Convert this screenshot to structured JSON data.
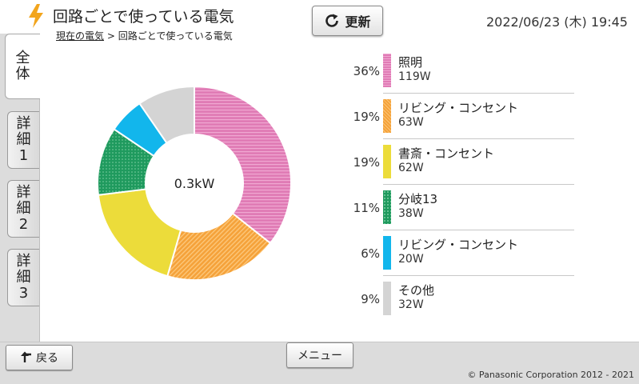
{
  "header": {
    "title": "回路ごとで使っている電気",
    "breadcrumb_link": "現在の電気",
    "breadcrumb_separator": ">",
    "breadcrumb_current": "回路ごとで使っている電気",
    "refresh_label": "更新",
    "datetime": "2022/06/23 (木) 19:45",
    "bolt_color": "#f2a51d"
  },
  "sidebar": {
    "tabs": [
      {
        "line1": "全",
        "line2": "体",
        "line3": ""
      },
      {
        "line1": "詳",
        "line2": "細",
        "line3": "1"
      },
      {
        "line1": "詳",
        "line2": "細",
        "line3": "2"
      },
      {
        "line1": "詳",
        "line2": "細",
        "line3": "3"
      }
    ],
    "active_tab": 0
  },
  "chart_data": {
    "type": "pie",
    "donut": true,
    "center_label": "0.3kW",
    "slices": [
      {
        "name": "照明",
        "percent": 36,
        "watts": "119W",
        "value": 119,
        "color": "#e07bb5",
        "pattern": "h-stripes"
      },
      {
        "name": "リビング・コンセント",
        "percent": 19,
        "watts": "63W",
        "value": 63,
        "color": "#f5a23a",
        "pattern": "diag-stripes"
      },
      {
        "name": "書斎・コンセント",
        "percent": 19,
        "watts": "62W",
        "value": 62,
        "color": "#ecdc3a",
        "pattern": "solid"
      },
      {
        "name": "分岐13",
        "percent": 11,
        "watts": "38W",
        "value": 38,
        "color": "#1f9a5e",
        "pattern": "dots"
      },
      {
        "name": "リビング・コンセント",
        "percent": 6,
        "watts": "20W",
        "value": 20,
        "color": "#12b6ec",
        "pattern": "solid"
      },
      {
        "name": "その他",
        "percent": 9,
        "watts": "32W",
        "value": 32,
        "color": "#d4d4d4",
        "pattern": "solid"
      }
    ]
  },
  "legend": {
    "rows": [
      {
        "pct": "36%",
        "name": "照明",
        "watts": "119W"
      },
      {
        "pct": "19%",
        "name": "リビング・コンセント",
        "watts": "63W"
      },
      {
        "pct": "19%",
        "name": "書斎・コンセント",
        "watts": "62W"
      },
      {
        "pct": "11%",
        "name": "分岐13",
        "watts": "38W"
      },
      {
        "pct": "6%",
        "name": "リビング・コンセント",
        "watts": "20W"
      },
      {
        "pct": "9%",
        "name": "その他",
        "watts": "32W"
      }
    ]
  },
  "footer": {
    "back_label": "戻る",
    "menu_label": "メニュー",
    "copyright": "© Panasonic Corporation 2012 - 2021"
  }
}
